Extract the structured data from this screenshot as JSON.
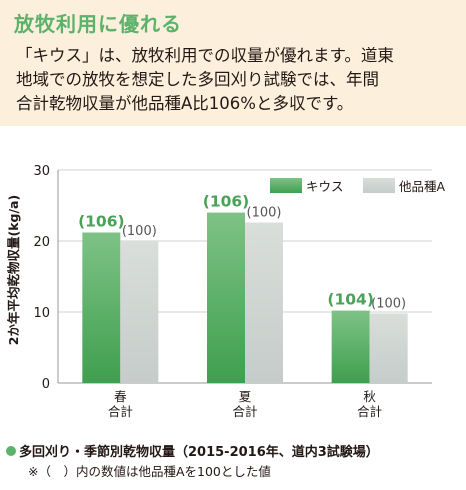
{
  "header": {
    "title": "放牧利用に優れる",
    "desc_lines": [
      "「キウス」は、放牧利用での収量が優れます。道東",
      "地域での放牧を想定した多回刈り試験では、年間",
      "合計乾物収量が他品種A比106%と多収です。"
    ]
  },
  "chart_data": {
    "type": "bar",
    "ylabel": "2か年平均乾物収量(kg/a)",
    "ylim": [
      0,
      30
    ],
    "yticks": [
      0,
      10,
      20,
      30
    ],
    "grid": true,
    "legend_position": "top-right",
    "categories": [
      [
        "春",
        "合計"
      ],
      [
        "夏",
        "合計"
      ],
      [
        "秋",
        "合計"
      ]
    ],
    "series": [
      {
        "name": "キウス",
        "values": [
          21.2,
          24.0,
          10.2
        ],
        "labels": [
          "(106)",
          "(106)",
          "(104)"
        ],
        "color": "#4fab5c"
      },
      {
        "name": "他品種A",
        "values": [
          20.0,
          22.6,
          9.8
        ],
        "labels": [
          "(100)",
          "(100)",
          "(100)"
        ],
        "color": "#d3d8d5"
      }
    ]
  },
  "footer": {
    "caption": "多回刈り・季節別乾物収量（2015-2016年、道内3試験場）",
    "note": "※（　）内の数値は他品種Aを100とした値"
  },
  "colors": {
    "accent": "#5cb26b",
    "header_bg": "#fcf0dc"
  }
}
